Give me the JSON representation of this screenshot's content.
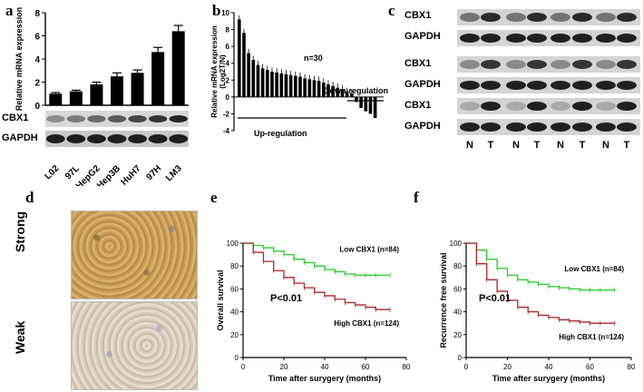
{
  "panels": {
    "a": {
      "letter": "a",
      "western": {
        "band1": "CBX1",
        "band2": "GAPDH"
      }
    },
    "b": {
      "letter": "b",
      "n_label": "n=30",
      "down_label": "Down-regulation",
      "up_label": "Up-regulation"
    },
    "c": {
      "letter": "c",
      "bands": [
        "CBX1",
        "GAPDH",
        "CBX1",
        "GAPDH",
        "CBX1",
        "GAPDH"
      ],
      "lanes": [
        "N",
        "T",
        "N",
        "T",
        "N",
        "T",
        "N",
        "T"
      ]
    },
    "d": {
      "letter": "d",
      "rows": [
        "Strong",
        "Weak"
      ]
    },
    "e": {
      "letter": "e",
      "pvalue": "P<0.01"
    },
    "f": {
      "letter": "f",
      "pvalue": "P<0.01"
    }
  },
  "chart_data": [
    {
      "id": "a",
      "type": "bar",
      "ylabel": "Relative mRNA expression",
      "ylim": [
        0,
        8
      ],
      "yticks": [
        0,
        2,
        4,
        6,
        8
      ],
      "categories": [
        "L02",
        "97L",
        "HepG2",
        "Hep3B",
        "HuH7",
        "97H",
        "LM3"
      ],
      "values": [
        1.0,
        1.2,
        1.8,
        2.5,
        2.8,
        4.6,
        6.4
      ],
      "errors": [
        0.1,
        0.1,
        0.2,
        0.3,
        0.25,
        0.4,
        0.5
      ],
      "color": "#000000"
    },
    {
      "id": "b",
      "type": "bar",
      "ylabel": "Relative mRNA expression",
      "ylabel2": "(Log2T/N)",
      "ylim": [
        -4,
        10
      ],
      "yticks": [
        -4,
        -2,
        0,
        2,
        4,
        6,
        8,
        10
      ],
      "values": [
        9.2,
        7.6,
        5.2,
        4.4,
        3.8,
        3.4,
        3.2,
        3.0,
        2.9,
        2.8,
        2.7,
        2.6,
        2.5,
        2.4,
        2.2,
        2.1,
        2.0,
        1.9,
        1.7,
        1.5,
        1.3,
        1.1,
        0.9,
        0.6,
        0.4,
        -0.6,
        -1.3,
        -1.7,
        -2.0,
        -2.5
      ],
      "color": "#000000"
    },
    {
      "id": "e",
      "type": "line",
      "xlabel": "Time after surygery (months)",
      "ylabel": "Overall survival",
      "xlim": [
        0,
        80
      ],
      "ylim": [
        0,
        100
      ],
      "xticks": [
        0,
        20,
        40,
        60,
        80
      ],
      "yticks": [
        0,
        20,
        40,
        60,
        80,
        100
      ],
      "series": [
        {
          "name": "Low CBX1 (n=84)",
          "color": "#22cc22",
          "x": [
            0,
            5,
            10,
            15,
            20,
            25,
            30,
            35,
            40,
            45,
            50,
            55,
            60,
            65,
            72
          ],
          "y": [
            100,
            98,
            96,
            93,
            90,
            86,
            83,
            80,
            77,
            75,
            73,
            72,
            72,
            72,
            72
          ]
        },
        {
          "name": "High CBX1 (n=124)",
          "color": "#b22222",
          "x": [
            0,
            5,
            10,
            15,
            20,
            25,
            30,
            35,
            40,
            45,
            50,
            55,
            60,
            65,
            72
          ],
          "y": [
            100,
            92,
            84,
            76,
            70,
            65,
            61,
            57,
            54,
            51,
            48,
            46,
            44,
            42,
            42
          ]
        }
      ]
    },
    {
      "id": "f",
      "type": "line",
      "xlabel": "Time after surygery (months)",
      "ylabel": "Recurrence free survival",
      "xlim": [
        0,
        80
      ],
      "ylim": [
        0,
        100
      ],
      "xticks": [
        0,
        20,
        40,
        60,
        80
      ],
      "yticks": [
        0,
        20,
        40,
        60,
        80,
        100
      ],
      "series": [
        {
          "name": "Low CBX1 (n=84)",
          "color": "#22cc22",
          "x": [
            0,
            5,
            10,
            15,
            20,
            25,
            30,
            35,
            40,
            45,
            50,
            55,
            60,
            65,
            72
          ],
          "y": [
            100,
            94,
            86,
            78,
            72,
            68,
            66,
            64,
            62,
            61,
            60,
            59,
            59,
            59,
            59
          ]
        },
        {
          "name": "High CBX1 (n=124)",
          "color": "#b22222",
          "x": [
            0,
            5,
            10,
            15,
            20,
            25,
            30,
            35,
            40,
            45,
            50,
            55,
            60,
            65,
            72
          ],
          "y": [
            100,
            82,
            68,
            58,
            50,
            44,
            40,
            37,
            35,
            33,
            32,
            31,
            30,
            30,
            30
          ]
        }
      ]
    }
  ]
}
